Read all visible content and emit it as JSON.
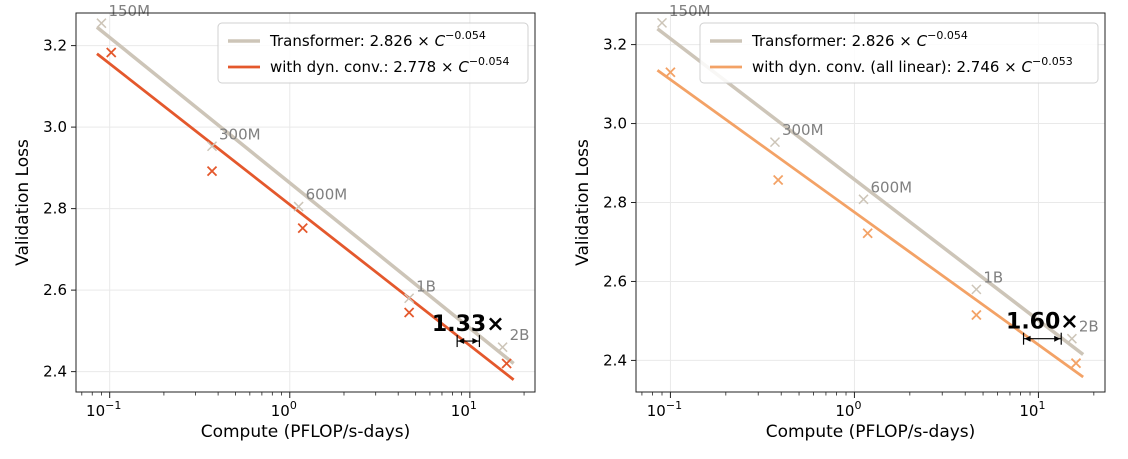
{
  "chart_data": [
    {
      "type": "line",
      "xlabel": "Compute (PFLOP/s-days)",
      "ylabel": "Validation Loss",
      "xscale": "log",
      "xlim": [
        0.065,
        23
      ],
      "ylim": [
        2.35,
        3.28
      ],
      "yticks": [
        "2.4",
        "2.6",
        "2.8",
        "3.0",
        "3.2"
      ],
      "xtick_base": "10",
      "xtick_exponents": [
        "−1",
        "0",
        "1"
      ],
      "grid": true,
      "legend_position": "top-right",
      "series": [
        {
          "name_prefix": "Transformer: 2.826 × ",
          "name_exp": "−0.054",
          "color": "#cdc5b8",
          "fit_points": [
            [
              0.085,
              3.245
            ],
            [
              17.5,
              2.42
            ]
          ],
          "points": [
            [
              0.09,
              3.255
            ],
            [
              0.37,
              2.953
            ],
            [
              1.12,
              2.805
            ],
            [
              4.6,
              2.58
            ],
            [
              15.2,
              2.46
            ]
          ]
        },
        {
          "name_prefix": "with dyn. conv.: 2.778 × ",
          "name_exp": "−0.054",
          "color": "#e4582c",
          "fit_points": [
            [
              0.085,
              3.18
            ],
            [
              17.5,
              2.38
            ]
          ],
          "points": [
            [
              0.102,
              3.183
            ],
            [
              0.37,
              2.892
            ],
            [
              1.18,
              2.752
            ],
            [
              4.6,
              2.545
            ],
            [
              16.0,
              2.42
            ]
          ]
        }
      ],
      "point_labels": [
        {
          "text": "150M",
          "x": 0.09,
          "y": 3.255
        },
        {
          "text": "300M",
          "x": 0.37,
          "y": 2.953
        },
        {
          "text": "600M",
          "x": 1.12,
          "y": 2.805
        },
        {
          "text": "1B",
          "x": 4.6,
          "y": 2.58
        },
        {
          "text": "2B",
          "x": 15.2,
          "y": 2.46
        }
      ],
      "speedup": {
        "text": "1.33×",
        "x_from": 8.5,
        "x_to": 11.3,
        "y": 2.475
      }
    },
    {
      "type": "line",
      "xlabel": "Compute (PFLOP/s-days)",
      "ylabel": "Validation Loss",
      "xscale": "log",
      "xlim": [
        0.065,
        23
      ],
      "ylim": [
        2.32,
        3.28
      ],
      "yticks": [
        "2.4",
        "2.6",
        "2.8",
        "3.0",
        "3.2"
      ],
      "xtick_base": "10",
      "xtick_exponents": [
        "−1",
        "0",
        "1"
      ],
      "grid": true,
      "legend_position": "top-right",
      "series": [
        {
          "name_prefix": "Transformer: 2.826 × ",
          "name_exp": "−0.054",
          "color": "#cdc5b8",
          "fit_points": [
            [
              0.085,
              3.24
            ],
            [
              17.5,
              2.415
            ]
          ],
          "points": [
            [
              0.09,
              3.255
            ],
            [
              0.37,
              2.953
            ],
            [
              1.12,
              2.808
            ],
            [
              4.6,
              2.58
            ],
            [
              15.2,
              2.455
            ]
          ]
        },
        {
          "name_prefix": "with dyn. conv. (all linear): 2.746 × ",
          "name_exp": "−0.053",
          "color": "#f3a266",
          "fit_points": [
            [
              0.085,
              3.135
            ],
            [
              17.5,
              2.358
            ]
          ],
          "points": [
            [
              0.1,
              3.13
            ],
            [
              0.385,
              2.857
            ],
            [
              1.18,
              2.722
            ],
            [
              4.6,
              2.515
            ],
            [
              16.0,
              2.393
            ]
          ]
        }
      ],
      "point_labels": [
        {
          "text": "150M",
          "x": 0.09,
          "y": 3.255
        },
        {
          "text": "300M",
          "x": 0.37,
          "y": 2.953
        },
        {
          "text": "600M",
          "x": 1.12,
          "y": 2.808
        },
        {
          "text": "1B",
          "x": 4.6,
          "y": 2.58
        },
        {
          "text": "2B",
          "x": 15.2,
          "y": 2.455
        }
      ],
      "speedup": {
        "text": "1.60×",
        "x_from": 8.3,
        "x_to": 13.3,
        "y": 2.455
      }
    }
  ]
}
